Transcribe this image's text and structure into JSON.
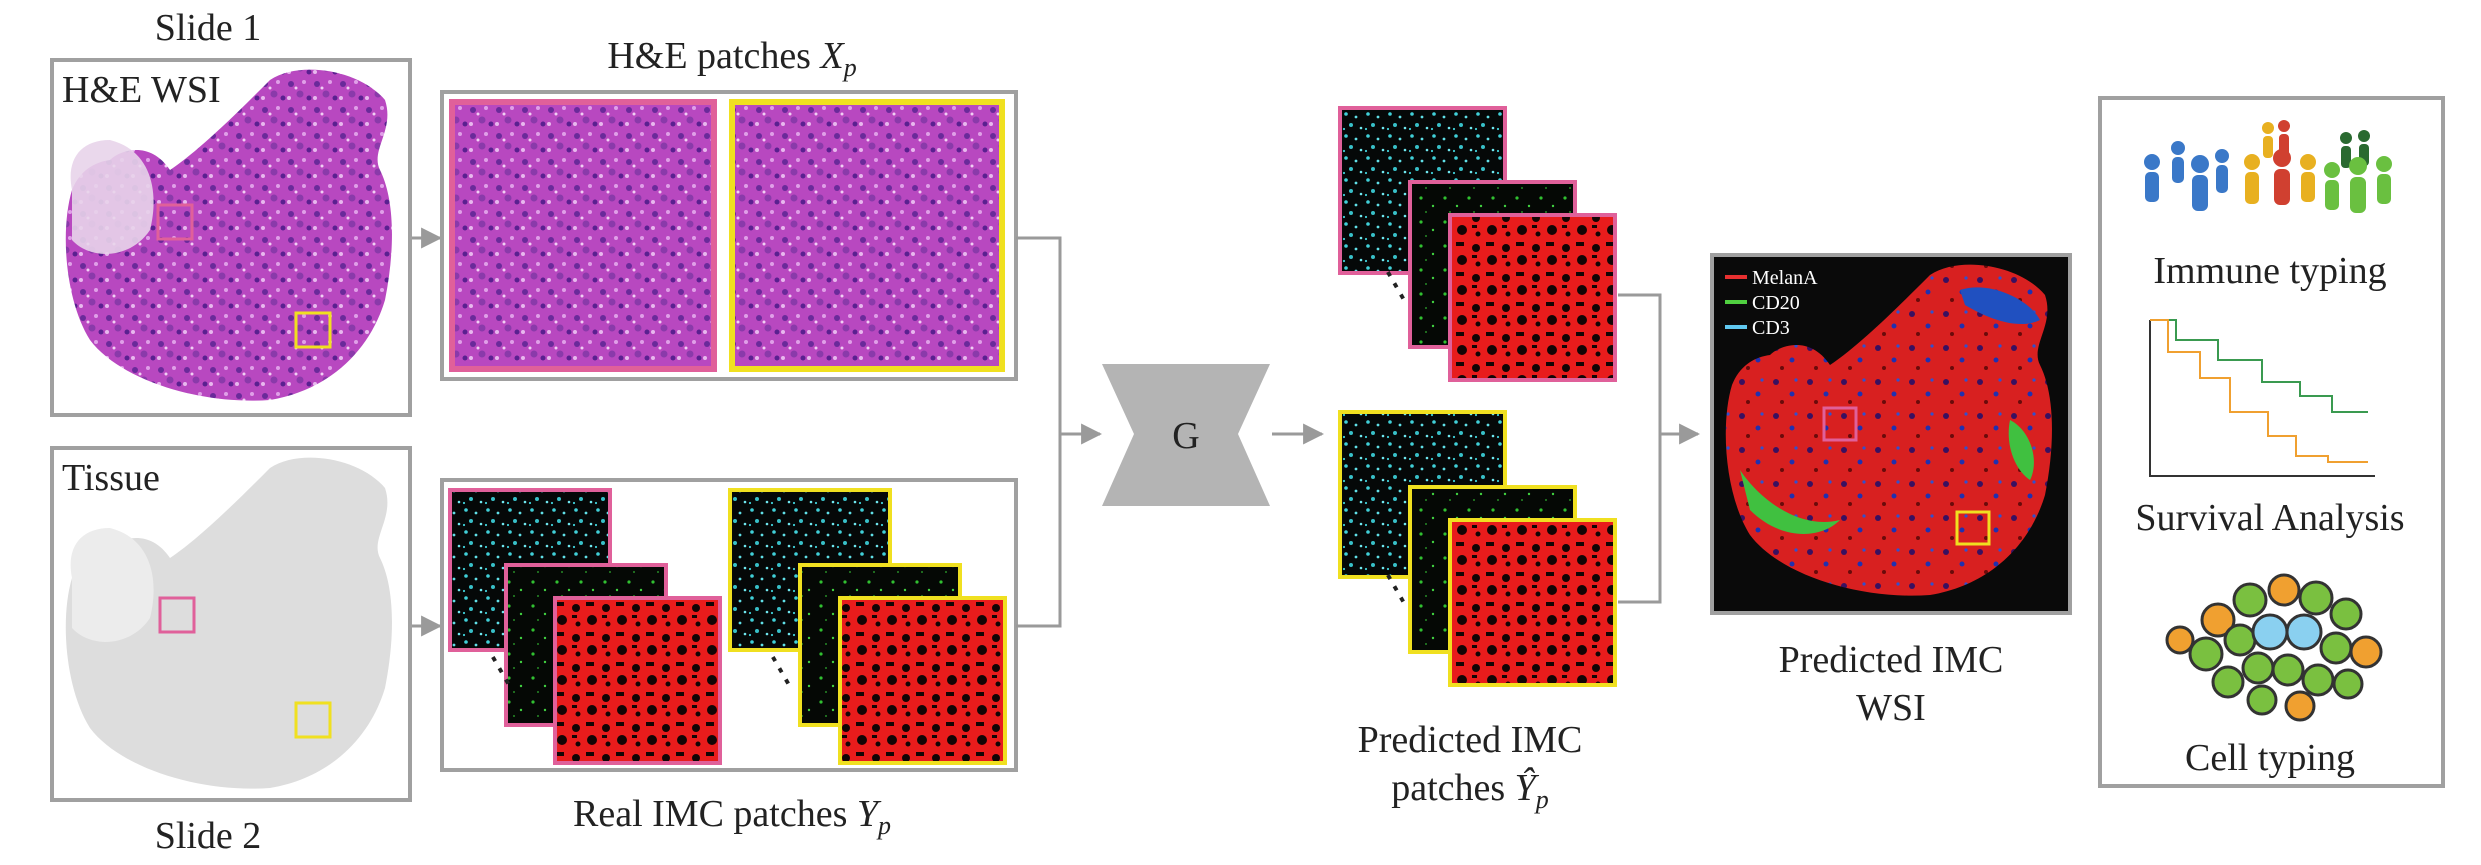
{
  "slide1": {
    "caption": "Slide 1",
    "label": "H&E WSI"
  },
  "slide2": {
    "caption": "Slide 2",
    "label": "Tissue"
  },
  "he_patches": {
    "title_text": "H&E patches ",
    "title_sym": "X",
    "title_sub": "p",
    "frame_colors": [
      "#e0609a",
      "#f0e020"
    ]
  },
  "real_imc": {
    "title_text": "Real IMC patches ",
    "title_sym": "Y",
    "title_sub": "p",
    "ellipsis": "⋮"
  },
  "generator": {
    "label": "G"
  },
  "predicted_patches": {
    "line1": "Predicted IMC",
    "line2_text": "patches ",
    "line2_sym": "Ŷ",
    "line2_sub": "p"
  },
  "predicted_wsi": {
    "line1": "Predicted IMC",
    "line2": "WSI",
    "legend": [
      {
        "name": "MelanA",
        "color": "#e83030"
      },
      {
        "name": "CD20",
        "color": "#50d040"
      },
      {
        "name": "CD3",
        "color": "#60c8f0"
      }
    ]
  },
  "applications": {
    "items": [
      {
        "label": "Immune typing",
        "icon": "people-icon"
      },
      {
        "label": "Survival Analysis",
        "icon": "survival-curve-icon"
      },
      {
        "label": "Cell typing",
        "icon": "cell-cluster-icon"
      }
    ]
  },
  "colors": {
    "pink": "#e0609a",
    "yellow": "#f0e020",
    "he": "#b040b8",
    "marker_red": "#e82020",
    "marker_cyan": "#40d8e0",
    "marker_green": "#30c030",
    "frame_gray": "#a0a0a0"
  }
}
